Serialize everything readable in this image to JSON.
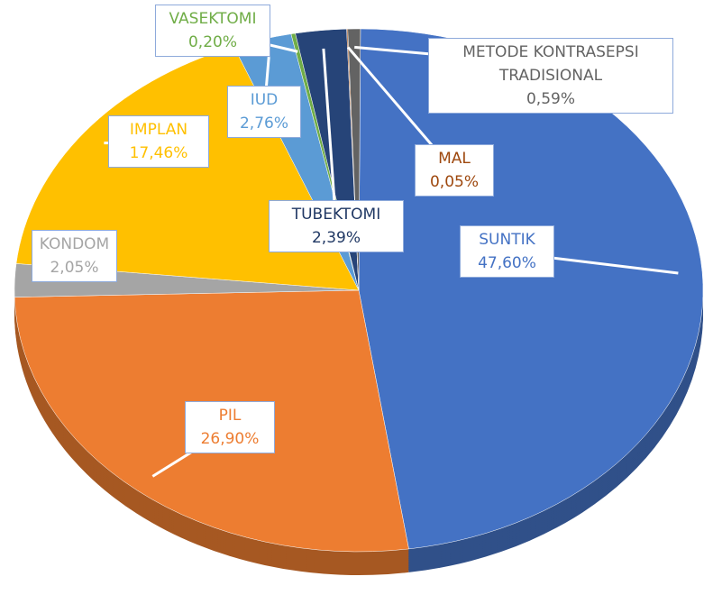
{
  "chart_data": {
    "type": "pie",
    "three_d": true,
    "categories": [
      "SUNTIK",
      "PIL",
      "KONDOM",
      "IMPLAN",
      "IUD",
      "VASEKTOMI",
      "TUBEKTOMI",
      "MAL",
      "METODE KONTRASEPSI TRADISIONAL"
    ],
    "values": [
      47.6,
      26.9,
      2.05,
      17.46,
      2.76,
      0.2,
      2.39,
      0.05,
      0.59
    ],
    "value_labels": [
      "47,60%",
      "26,90%",
      "2,05%",
      "17,46%",
      "2,76%",
      "0,20%",
      "2,39%",
      "0,05%",
      "0,59%"
    ],
    "colors": [
      "#4472c4",
      "#ed7d31",
      "#a5a5a5",
      "#ffc000",
      "#5b9bd5",
      "#70ad47",
      "#264478",
      "#9e480e",
      "#636363"
    ]
  }
}
